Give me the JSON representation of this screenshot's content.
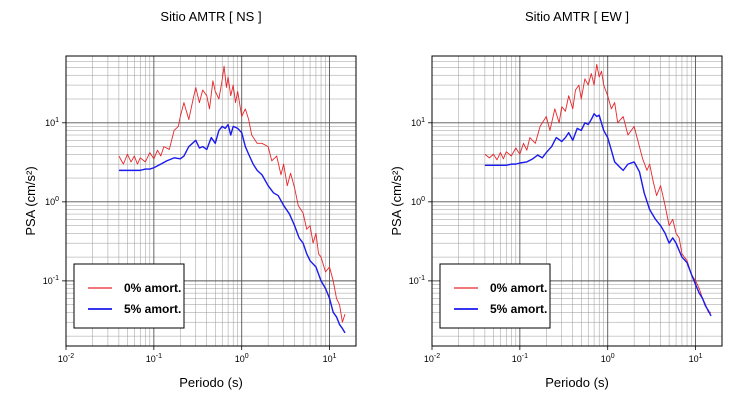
{
  "chart_data": [
    {
      "type": "line",
      "title": "Sitio AMTR [ NS ]",
      "xlabel": "Periodo (s)",
      "ylabel": "PSA (cm/s²)",
      "x_scale": "log",
      "y_scale": "log",
      "xlim": [
        0.01,
        20
      ],
      "ylim": [
        0.015,
        70
      ],
      "grid": true,
      "legend_position": "bottom-left",
      "x_ticks": [
        {
          "base": "10",
          "exp": "-2"
        },
        {
          "base": "10",
          "exp": "-1"
        },
        {
          "base": "10",
          "exp": "0"
        },
        {
          "base": "10",
          "exp": "1"
        }
      ],
      "y_ticks": [
        {
          "base": "10",
          "exp": "-1"
        },
        {
          "base": "10",
          "exp": "0"
        },
        {
          "base": "10",
          "exp": "1"
        }
      ],
      "series": [
        {
          "name": "0% amort.",
          "color": "#e8262a",
          "x": [
            0.04,
            0.045,
            0.05,
            0.055,
            0.06,
            0.065,
            0.07,
            0.08,
            0.09,
            0.1,
            0.11,
            0.12,
            0.13,
            0.15,
            0.17,
            0.19,
            0.2,
            0.22,
            0.25,
            0.28,
            0.3,
            0.33,
            0.36,
            0.4,
            0.43,
            0.47,
            0.5,
            0.55,
            0.6,
            0.63,
            0.67,
            0.7,
            0.75,
            0.8,
            0.85,
            0.9,
            1.0,
            1.1,
            1.2,
            1.3,
            1.5,
            1.7,
            2.0,
            2.2,
            2.5,
            2.8,
            3.0,
            3.3,
            3.6,
            4.0,
            4.4,
            5.0,
            5.5,
            6.0,
            6.5,
            7.0,
            7.5,
            8.0,
            9.0,
            10.0,
            11.0,
            12.0,
            13.0,
            14.0,
            15.0
          ],
          "values": [
            3.8,
            3.0,
            4.0,
            3.2,
            3.8,
            3.0,
            3.6,
            3.2,
            4.2,
            3.5,
            4.5,
            3.8,
            5.0,
            4.6,
            8.0,
            9.0,
            12.0,
            18.0,
            11.0,
            20.0,
            28.0,
            18.0,
            26.0,
            22.0,
            15.0,
            34.0,
            25.0,
            20.0,
            35.0,
            52.0,
            28.0,
            38.0,
            22.0,
            30.0,
            18.0,
            25.0,
            12.0,
            15.0,
            11.0,
            7.0,
            5.5,
            5.5,
            5.0,
            3.3,
            3.8,
            2.2,
            3.0,
            1.6,
            2.3,
            1.5,
            0.9,
            0.72,
            0.45,
            0.5,
            0.3,
            0.4,
            0.22,
            0.2,
            0.13,
            0.15,
            0.1,
            0.06,
            0.05,
            0.03,
            0.038
          ]
        },
        {
          "name": "5% amort.",
          "color": "#1a1aee",
          "x": [
            0.04,
            0.05,
            0.06,
            0.07,
            0.08,
            0.09,
            0.1,
            0.12,
            0.14,
            0.17,
            0.2,
            0.22,
            0.25,
            0.3,
            0.33,
            0.36,
            0.4,
            0.45,
            0.5,
            0.55,
            0.6,
            0.65,
            0.7,
            0.75,
            0.8,
            0.9,
            1.0,
            1.1,
            1.2,
            1.35,
            1.5,
            1.7,
            2.0,
            2.3,
            2.6,
            3.0,
            3.5,
            4.0,
            4.5,
            5.0,
            5.5,
            6.0,
            7.0,
            8.0,
            9.0,
            10.0,
            11.0,
            12.0,
            13.0,
            14.0,
            15.0
          ],
          "values": [
            2.5,
            2.5,
            2.5,
            2.5,
            2.6,
            2.6,
            2.7,
            3.0,
            3.3,
            3.6,
            3.5,
            3.8,
            5.0,
            6.0,
            4.8,
            5.0,
            4.6,
            6.5,
            5.5,
            8.0,
            9.0,
            8.5,
            9.5,
            7.0,
            9.0,
            8.5,
            7.5,
            5.0,
            4.0,
            3.0,
            2.5,
            2.2,
            1.6,
            1.3,
            1.2,
            0.9,
            0.7,
            0.5,
            0.35,
            0.3,
            0.22,
            0.18,
            0.15,
            0.1,
            0.08,
            0.06,
            0.04,
            0.035,
            0.028,
            0.025,
            0.022
          ]
        }
      ]
    },
    {
      "type": "line",
      "title": "Sitio AMTR [ EW ]",
      "xlabel": "Periodo (s)",
      "ylabel": "PSA (cm/s²)",
      "x_scale": "log",
      "y_scale": "log",
      "xlim": [
        0.01,
        20
      ],
      "ylim": [
        0.015,
        70
      ],
      "grid": true,
      "legend_position": "bottom-left",
      "x_ticks": [
        {
          "base": "10",
          "exp": "-2"
        },
        {
          "base": "10",
          "exp": "-1"
        },
        {
          "base": "10",
          "exp": "0"
        },
        {
          "base": "10",
          "exp": "1"
        }
      ],
      "y_ticks": [
        {
          "base": "10",
          "exp": "-1"
        },
        {
          "base": "10",
          "exp": "0"
        },
        {
          "base": "10",
          "exp": "1"
        }
      ],
      "series": [
        {
          "name": "0% amort.",
          "color": "#e8262a",
          "x": [
            0.04,
            0.045,
            0.05,
            0.055,
            0.06,
            0.065,
            0.07,
            0.08,
            0.09,
            0.1,
            0.11,
            0.12,
            0.13,
            0.15,
            0.17,
            0.2,
            0.22,
            0.25,
            0.28,
            0.3,
            0.33,
            0.36,
            0.4,
            0.43,
            0.47,
            0.5,
            0.55,
            0.6,
            0.65,
            0.7,
            0.75,
            0.8,
            0.85,
            0.9,
            1.0,
            1.1,
            1.2,
            1.3,
            1.5,
            1.7,
            2.0,
            2.2,
            2.5,
            2.8,
            3.0,
            3.3,
            3.6,
            4.0,
            4.5,
            5.0,
            5.5,
            6.0,
            6.5,
            7.0,
            8.0,
            9.0,
            10.0,
            11.0,
            12.0,
            13.0,
            14.0,
            15.0
          ],
          "values": [
            4.0,
            3.6,
            4.0,
            3.4,
            4.2,
            3.5,
            4.3,
            3.8,
            4.8,
            4.0,
            5.5,
            4.5,
            6.5,
            5.5,
            9.0,
            12.0,
            8.0,
            15.0,
            10.0,
            16.0,
            14.0,
            22.0,
            15.0,
            26.0,
            30.0,
            20.0,
            36.0,
            30.0,
            42.0,
            30.0,
            55.0,
            38.0,
            45.0,
            30.0,
            22.0,
            15.0,
            18.0,
            10.0,
            12.0,
            7.0,
            9.0,
            6.0,
            3.5,
            2.5,
            3.0,
            1.8,
            1.2,
            1.6,
            0.9,
            0.5,
            0.6,
            0.4,
            0.35,
            0.22,
            0.18,
            0.12,
            0.1,
            0.08,
            0.06,
            0.05,
            0.04,
            0.04
          ]
        },
        {
          "name": "5% amort.",
          "color": "#1a1aee",
          "x": [
            0.04,
            0.05,
            0.06,
            0.07,
            0.08,
            0.09,
            0.1,
            0.12,
            0.14,
            0.16,
            0.18,
            0.2,
            0.23,
            0.26,
            0.3,
            0.33,
            0.36,
            0.4,
            0.45,
            0.5,
            0.55,
            0.6,
            0.65,
            0.7,
            0.75,
            0.8,
            0.9,
            1.0,
            1.1,
            1.2,
            1.35,
            1.5,
            1.7,
            2.0,
            2.3,
            2.6,
            3.0,
            3.5,
            4.0,
            4.5,
            5.0,
            5.5,
            6.0,
            7.0,
            8.0,
            9.0,
            10.0,
            11.0,
            12.0,
            13.0,
            14.0,
            15.0
          ],
          "values": [
            2.9,
            2.9,
            2.9,
            2.9,
            3.0,
            3.0,
            3.1,
            3.2,
            3.5,
            3.9,
            3.6,
            4.2,
            5.0,
            6.5,
            5.8,
            6.5,
            7.5,
            6.0,
            8.5,
            8.0,
            10.0,
            9.5,
            11.0,
            13.0,
            12.0,
            12.5,
            8.0,
            6.5,
            4.5,
            3.2,
            2.8,
            2.5,
            3.0,
            3.2,
            2.4,
            1.3,
            0.8,
            0.6,
            0.5,
            0.4,
            0.3,
            0.35,
            0.3,
            0.2,
            0.17,
            0.12,
            0.09,
            0.07,
            0.06,
            0.048,
            0.042,
            0.036
          ]
        }
      ]
    }
  ]
}
